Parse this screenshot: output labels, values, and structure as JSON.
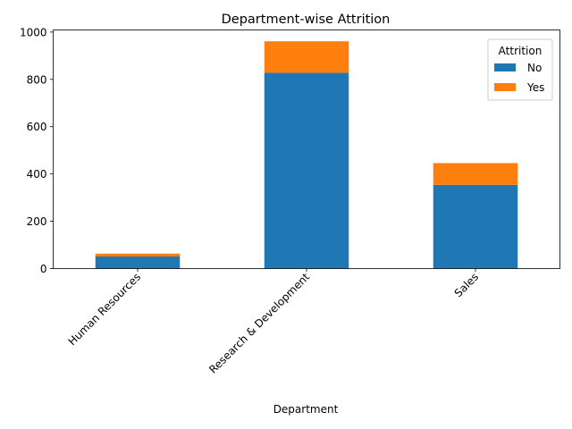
{
  "chart_data": {
    "type": "bar",
    "stacked": true,
    "title": "Department-wise Attrition",
    "xlabel": "Department",
    "ylabel": "",
    "categories": [
      "Human Resources",
      "Research & Development",
      "Sales"
    ],
    "series": [
      {
        "name": "No",
        "values": [
          51,
          828,
          354
        ],
        "color": "#1f77b4"
      },
      {
        "name": "Yes",
        "values": [
          12,
          133,
          92
        ],
        "color": "#ff7f0e"
      }
    ],
    "ylim": [
      0,
      1009
    ],
    "yticks": [
      "0",
      "200",
      "400",
      "600",
      "800",
      "1000"
    ],
    "legend": {
      "title": "Attrition",
      "placement": "top-right"
    },
    "grid": false
  }
}
